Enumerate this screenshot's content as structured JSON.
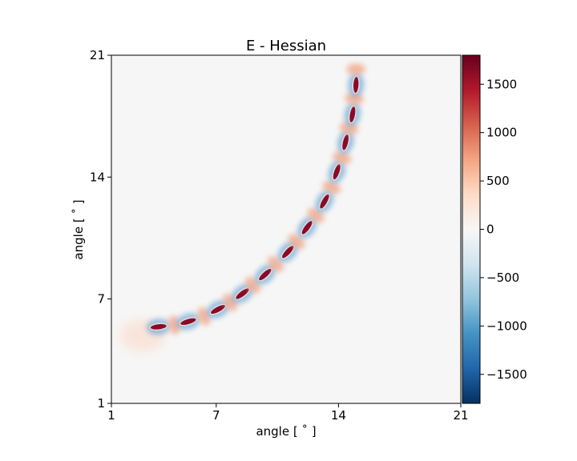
{
  "chart_data": {
    "type": "heatmap",
    "title": "E - Hessian",
    "xlabel": "angle [$^\\circ$]",
    "ylabel": "angle [$^\\circ$]",
    "xlabel_text": "angle [ ˚ ]",
    "ylabel_text": "angle [ ˚ ]",
    "xlim": [
      1,
      21
    ],
    "ylim": [
      1,
      21
    ],
    "x_ticks": [
      "1",
      "7",
      "14",
      "21"
    ],
    "y_ticks": [
      "1",
      "7",
      "14",
      "21"
    ],
    "x_tick_values": [
      1,
      7,
      14,
      21
    ],
    "y_tick_values": [
      1,
      7,
      14,
      21
    ],
    "colormap": "RdBu_r",
    "colorbar": {
      "range": [
        -1800,
        1800
      ],
      "ticks": [
        "1500",
        "1000",
        "500",
        "0",
        "−500",
        "−1000",
        "−1500"
      ],
      "tick_values": [
        1500,
        1000,
        500,
        0,
        -500,
        -1000,
        -1500
      ]
    },
    "background_value": 0,
    "band_description": "Elongated positive (red) lobes flanked by negative (blue) halos along a curved path",
    "band_points": [
      {
        "x": 3.7,
        "y": 5.4,
        "v": 1800
      },
      {
        "x": 4.6,
        "y": 5.5,
        "v": 500
      },
      {
        "x": 5.4,
        "y": 5.7,
        "v": 1800
      },
      {
        "x": 6.3,
        "y": 6.0,
        "v": 500
      },
      {
        "x": 7.1,
        "y": 6.4,
        "v": 1800
      },
      {
        "x": 7.8,
        "y": 6.8,
        "v": 500
      },
      {
        "x": 8.5,
        "y": 7.3,
        "v": 1800
      },
      {
        "x": 9.1,
        "y": 7.8,
        "v": 500
      },
      {
        "x": 9.8,
        "y": 8.4,
        "v": 1800
      },
      {
        "x": 10.4,
        "y": 9.0,
        "v": 500
      },
      {
        "x": 11.1,
        "y": 9.7,
        "v": 1800
      },
      {
        "x": 11.6,
        "y": 10.3,
        "v": 500
      },
      {
        "x": 12.2,
        "y": 11.1,
        "v": 1800
      },
      {
        "x": 12.7,
        "y": 11.8,
        "v": 500
      },
      {
        "x": 13.2,
        "y": 12.6,
        "v": 1800
      },
      {
        "x": 13.6,
        "y": 13.4,
        "v": 500
      },
      {
        "x": 13.9,
        "y": 14.3,
        "v": 1800
      },
      {
        "x": 14.2,
        "y": 15.1,
        "v": 500
      },
      {
        "x": 14.4,
        "y": 16.0,
        "v": 1800
      },
      {
        "x": 14.6,
        "y": 16.8,
        "v": 500
      },
      {
        "x": 14.8,
        "y": 17.6,
        "v": 1800
      },
      {
        "x": 14.9,
        "y": 18.5,
        "v": 500
      },
      {
        "x": 15.0,
        "y": 19.3,
        "v": 1800
      },
      {
        "x": 15.0,
        "y": 20.2,
        "v": 500
      }
    ]
  }
}
